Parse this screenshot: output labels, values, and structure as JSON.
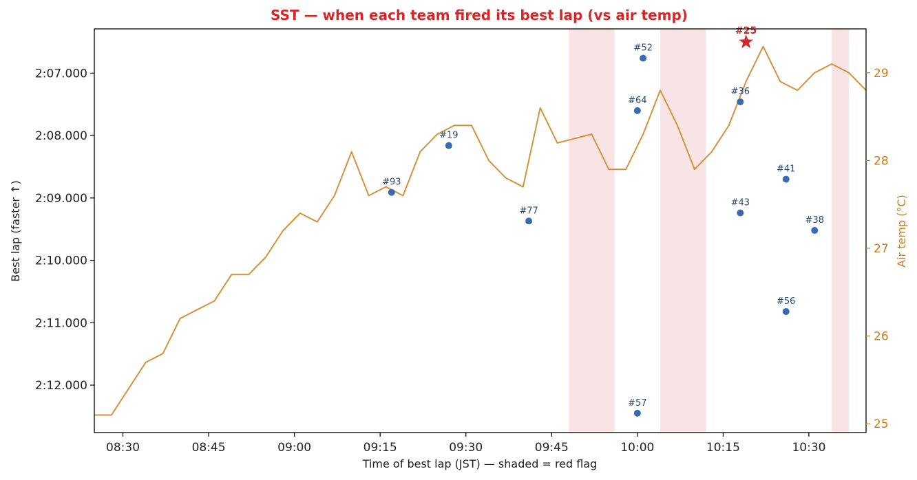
{
  "chart_data": {
    "type": "scatter",
    "title": "SST — when each team fired its best lap (vs air temp)",
    "xlabel": "Time of best lap (JST) — shaded = red flag",
    "ylabel": "Best lap (faster ↑)",
    "ylabel_right": "Air temp (°C)",
    "x_range": [
      "08:25",
      "10:40"
    ],
    "y_range_seconds": [
      126.29,
      132.76
    ],
    "y_inverted": true,
    "y_right_range": [
      24.9,
      29.5
    ],
    "x_ticks": [
      "08:30",
      "08:45",
      "09:00",
      "09:15",
      "09:30",
      "09:45",
      "10:00",
      "10:15",
      "10:30"
    ],
    "y_ticks": [
      "2:07.000",
      "2:08.000",
      "2:09.000",
      "2:10.000",
      "2:11.000",
      "2:12.000"
    ],
    "y_right_ticks": [
      "25",
      "26",
      "27",
      "28",
      "29"
    ],
    "red_flags": [
      {
        "start": "09:48",
        "end": "09:56"
      },
      {
        "start": "10:04",
        "end": "10:12"
      },
      {
        "start": "10:34",
        "end": "10:37"
      }
    ],
    "teams": [
      {
        "label": "#93",
        "time": "09:17",
        "lap_s": 128.91
      },
      {
        "label": "#19",
        "time": "09:27",
        "lap_s": 128.16
      },
      {
        "label": "#77",
        "time": "09:41",
        "lap_s": 129.37
      },
      {
        "label": "#52",
        "time": "10:01",
        "lap_s": 126.76
      },
      {
        "label": "#64",
        "time": "10:00",
        "lap_s": 127.6
      },
      {
        "label": "#57",
        "time": "10:00",
        "lap_s": 132.45
      },
      {
        "label": "#36",
        "time": "10:18",
        "lap_s": 127.46
      },
      {
        "label": "#43",
        "time": "10:18",
        "lap_s": 129.24
      },
      {
        "label": "#41",
        "time": "10:26",
        "lap_s": 128.7
      },
      {
        "label": "#38",
        "time": "10:31",
        "lap_s": 129.52
      },
      {
        "label": "#56",
        "time": "10:26",
        "lap_s": 130.82
      }
    ],
    "best": {
      "label": "#25",
      "time": "10:19",
      "lap_s": 126.5
    },
    "air_temp": [
      {
        "time": "08:25",
        "temp": 25.1
      },
      {
        "time": "08:28",
        "temp": 25.1
      },
      {
        "time": "08:31",
        "temp": 25.4
      },
      {
        "time": "08:34",
        "temp": 25.7
      },
      {
        "time": "08:37",
        "temp": 25.8
      },
      {
        "time": "08:40",
        "temp": 26.2
      },
      {
        "time": "08:43",
        "temp": 26.3
      },
      {
        "time": "08:46",
        "temp": 26.4
      },
      {
        "time": "08:49",
        "temp": 26.7
      },
      {
        "time": "08:52",
        "temp": 26.7
      },
      {
        "time": "08:55",
        "temp": 26.9
      },
      {
        "time": "08:58",
        "temp": 27.2
      },
      {
        "time": "09:01",
        "temp": 27.4
      },
      {
        "time": "09:04",
        "temp": 27.3
      },
      {
        "time": "09:07",
        "temp": 27.6
      },
      {
        "time": "09:10",
        "temp": 28.1
      },
      {
        "time": "09:13",
        "temp": 27.6
      },
      {
        "time": "09:16",
        "temp": 27.7
      },
      {
        "time": "09:19",
        "temp": 27.6
      },
      {
        "time": "09:22",
        "temp": 28.1
      },
      {
        "time": "09:25",
        "temp": 28.3
      },
      {
        "time": "09:28",
        "temp": 28.4
      },
      {
        "time": "09:31",
        "temp": 28.4
      },
      {
        "time": "09:34",
        "temp": 28.0
      },
      {
        "time": "09:37",
        "temp": 27.8
      },
      {
        "time": "09:40",
        "temp": 27.7
      },
      {
        "time": "09:43",
        "temp": 28.6
      },
      {
        "time": "09:46",
        "temp": 28.2
      },
      {
        "time": "09:49",
        "temp": 28.25
      },
      {
        "time": "09:52",
        "temp": 28.3
      },
      {
        "time": "09:55",
        "temp": 27.9
      },
      {
        "time": "09:58",
        "temp": 27.9
      },
      {
        "time": "10:01",
        "temp": 28.3
      },
      {
        "time": "10:04",
        "temp": 28.8
      },
      {
        "time": "10:07",
        "temp": 28.4
      },
      {
        "time": "10:10",
        "temp": 27.9
      },
      {
        "time": "10:13",
        "temp": 28.1
      },
      {
        "time": "10:16",
        "temp": 28.4
      },
      {
        "time": "10:19",
        "temp": 28.9
      },
      {
        "time": "10:22",
        "temp": 29.3
      },
      {
        "time": "10:25",
        "temp": 28.9
      },
      {
        "time": "10:28",
        "temp": 28.8
      },
      {
        "time": "10:31",
        "temp": 29.0
      },
      {
        "time": "10:34",
        "temp": 29.1
      },
      {
        "time": "10:37",
        "temp": 29.0
      },
      {
        "time": "10:40",
        "temp": 28.8
      }
    ],
    "colors": {
      "points": "#3a6bb0",
      "point_labels": "#2a4a78",
      "temp_line": "#d4923a",
      "right_axis": "#cc7a1a",
      "title": "#d62728",
      "best": "#d62728",
      "red_flag": "#f8e4e4"
    }
  }
}
